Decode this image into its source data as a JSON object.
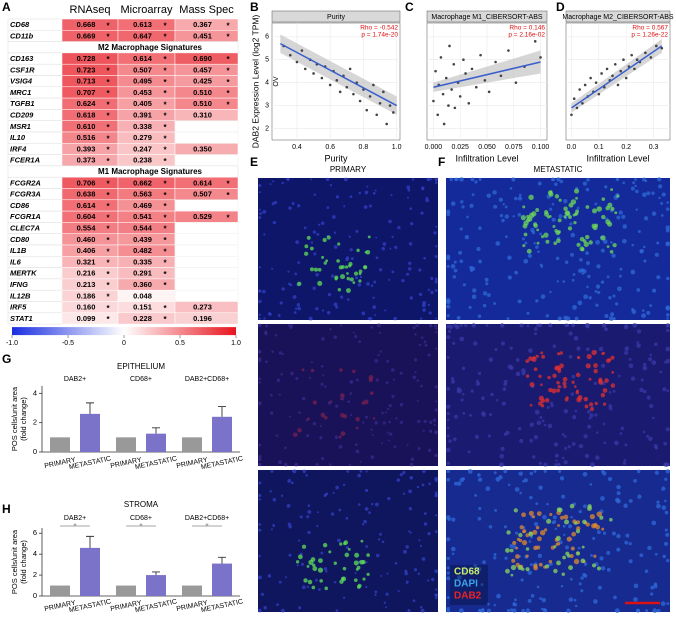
{
  "heatmap_table": {
    "label": "A",
    "columns": [
      "RNAseq",
      "Microarray",
      "Mass Spec"
    ],
    "sections": [
      {
        "rows": [
          {
            "gene": "CD68",
            "cells": [
              0.668,
              0.613,
              0.367
            ],
            "stars": [
              "*",
              "*",
              "*"
            ]
          },
          {
            "gene": "CD11b",
            "cells": [
              0.669,
              0.647,
              0.451
            ],
            "stars": [
              "*",
              "*",
              "*"
            ]
          }
        ]
      },
      {
        "title": "M2 Macrophage Signatures",
        "rows": [
          {
            "gene": "CD163",
            "cells": [
              0.728,
              0.614,
              {
                "value": 0.69,
                "label": "0.690"
              }
            ],
            "stars": [
              "*",
              "*",
              "*"
            ]
          },
          {
            "gene": "CSF1R",
            "cells": [
              0.723,
              0.507,
              0.457
            ],
            "stars": [
              "*",
              "*",
              "*"
            ]
          },
          {
            "gene": "VSIG4",
            "cells": [
              0.713,
              0.495,
              0.425
            ],
            "stars": [
              "*",
              "*",
              "*"
            ]
          },
          {
            "gene": "MRC1",
            "cells": [
              0.707,
              0.453,
              {
                "value": 0.51,
                "label": "0.510"
              }
            ],
            "stars": [
              "*",
              "*",
              "*"
            ]
          },
          {
            "gene": "TGFB1",
            "cells": [
              0.624,
              0.405,
              {
                "value": 0.51,
                "label": "0.510"
              }
            ],
            "stars": [
              "*",
              "*",
              "*"
            ]
          },
          {
            "gene": "CD209",
            "cells": [
              0.618,
              0.391,
              {
                "value": 0.31,
                "label": "0.310"
              }
            ],
            "stars": [
              "*",
              "*",
              null
            ]
          },
          {
            "gene": "MSR1",
            "cells": [
              {
                "value": 0.61,
                "label": "0.610"
              },
              0.338,
              null
            ],
            "stars": [
              "*",
              "*",
              null
            ]
          },
          {
            "gene": "IL10",
            "cells": [
              0.516,
              0.279,
              null
            ],
            "stars": [
              "*",
              "*",
              null
            ]
          },
          {
            "gene": "IRF4",
            "cells": [
              0.393,
              0.247,
              {
                "value": 0.35,
                "label": "0.350"
              }
            ],
            "stars": [
              "*",
              "*",
              null
            ]
          },
          {
            "gene": "FCER1A",
            "cells": [
              0.373,
              0.238,
              null
            ],
            "stars": [
              "*",
              "*",
              null
            ]
          }
        ]
      },
      {
        "title": "M1 Macrophage Signatures",
        "rows": [
          {
            "gene": "FCGR2A",
            "cells": [
              0.706,
              0.662,
              0.614
            ],
            "stars": [
              "*",
              "*",
              "*"
            ]
          },
          {
            "gene": "FCGR3A",
            "cells": [
              0.638,
              0.563,
              0.507
            ],
            "stars": [
              "*",
              "*",
              "*"
            ]
          },
          {
            "gene": "CD86",
            "cells": [
              0.614,
              0.469,
              null
            ],
            "stars": [
              "*",
              "*",
              null
            ]
          },
          {
            "gene": "FCGR1A",
            "cells": [
              0.604,
              0.541,
              0.529
            ],
            "stars": [
              "*",
              "*",
              "*"
            ]
          },
          {
            "gene": "CLEC7A",
            "cells": [
              0.554,
              0.544,
              null
            ],
            "stars": [
              "*",
              "*",
              null
            ]
          },
          {
            "gene": "CD80",
            "cells": [
              {
                "value": 0.46,
                "label": "0.460"
              },
              0.439,
              null
            ],
            "stars": [
              "*",
              "*",
              null
            ]
          },
          {
            "gene": "IL1B",
            "cells": [
              0.406,
              0.482,
              null
            ],
            "stars": [
              "*",
              "*",
              null
            ]
          },
          {
            "gene": "IL6",
            "cells": [
              0.321,
              0.335,
              null
            ],
            "stars": [
              "*",
              "*",
              null
            ]
          },
          {
            "gene": "MERTK",
            "cells": [
              0.216,
              0.291,
              null
            ],
            "stars": [
              "*",
              "*",
              null
            ]
          },
          {
            "gene": "IFNG",
            "cells": [
              0.213,
              {
                "value": 0.36,
                "label": "0.360"
              },
              null
            ],
            "stars": [
              "*",
              "*",
              null
            ]
          },
          {
            "gene": "IL12B",
            "cells": [
              0.186,
              0.048,
              null
            ],
            "stars": [
              "*",
              null,
              null
            ]
          },
          {
            "gene": "IRF5",
            "cells": [
              {
                "value": 0.16,
                "label": "0.160"
              },
              0.151,
              0.273
            ],
            "stars": [
              "*",
              "*",
              null
            ]
          },
          {
            "gene": "STAT1",
            "cells": [
              0.099,
              0.228,
              0.196
            ],
            "stars": [
              "*",
              "*",
              null
            ]
          }
        ]
      }
    ],
    "colorbar": {
      "lim": [
        -1,
        1
      ],
      "ticks": [
        {
          "value": -1,
          "label": "-1.0"
        },
        -0.5,
        0,
        0.5,
        {
          "value": 1,
          "label": "1.0"
        }
      ],
      "colors": [
        "#1a2ee0",
        "#ffffff",
        "#e8141e"
      ]
    }
  },
  "chart_data": [
    {
      "type": "scatter",
      "panel": "B",
      "title": "Purity",
      "xlabel": "Purity",
      "ylabel": "DAB2 Expression Level (log2 TPM)",
      "side_label": "OV",
      "annotation": [
        "Rho = -0.542",
        "p = 1.74e-20"
      ],
      "color": "#444444",
      "fit_color": "#3a5fcd",
      "x": [
        0.32,
        0.36,
        0.4,
        0.43,
        0.45,
        0.48,
        0.5,
        0.52,
        0.55,
        0.57,
        0.6,
        0.62,
        0.64,
        0.66,
        0.68,
        0.7,
        0.72,
        0.74,
        0.76,
        0.78,
        0.8,
        0.82,
        0.84,
        0.86,
        0.88,
        0.9,
        0.92,
        0.94,
        0.96,
        0.98
      ],
      "y": [
        5.6,
        5.2,
        4.9,
        5.4,
        4.6,
        5,
        4.4,
        4.8,
        4.2,
        4.7,
        3.9,
        4.5,
        4.1,
        3.6,
        4.3,
        3.8,
        4.6,
        3.5,
        4,
        3.2,
        3.7,
        2.8,
        3.4,
        3.9,
        2.6,
        3.1,
        3.6,
        2.2,
        3,
        2.7
      ],
      "fit": {
        "x": [
          0.3,
          1
        ],
        "y": [
          5.7,
          3
        ],
        "lower": [
          5.3,
          2.6
        ],
        "upper": [
          6.1,
          3.4
        ]
      },
      "xlim": [
        0.25,
        1.02
      ],
      "xticks": [
        0.4,
        0.6,
        0.8,
        {
          "value": 1,
          "label": "1.0"
        }
      ],
      "ylim": [
        1.5,
        6.6
      ],
      "yticks": [
        2,
        3,
        4,
        5,
        6
      ]
    },
    {
      "type": "scatter",
      "panel": "C",
      "title": "Macrophage M1_CIBERSORT-ABS",
      "xlabel": "Infiltration Level",
      "annotation": [
        "Rho = 0.146",
        "p = 2.16e-02"
      ],
      "color": "#444444",
      "fit_color": "#3a5fcd",
      "x": [
        0,
        0.002,
        0.004,
        0.005,
        0.007,
        0.009,
        0.01,
        0.012,
        0.014,
        0.015,
        0.017,
        0.019,
        0.02,
        0.023,
        0.025,
        0.028,
        0.03,
        0.033,
        0.036,
        0.04,
        0.044,
        0.048,
        0.052,
        0.058,
        0.063,
        0.07,
        0.077,
        0.085,
        0.095,
        0.1
      ],
      "y": [
        3.2,
        4.5,
        2.6,
        3.9,
        5.1,
        3.5,
        2.2,
        4.2,
        3,
        5.6,
        3.7,
        4.8,
        2.9,
        4,
        3.4,
        5,
        4.4,
        3.1,
        4.6,
        3.8,
        5.2,
        4.1,
        3.6,
        4.9,
        4.3,
        5.4,
        4,
        4.7,
        5.8,
        5.1
      ],
      "fit": {
        "x": [
          0,
          0.1
        ],
        "y": [
          3.8,
          4.9
        ],
        "lower": [
          3.6,
          4.4
        ],
        "upper": [
          4,
          5.4
        ]
      },
      "xlim": [
        -0.006,
        0.106
      ],
      "xticks": [
        {
          "value": 0,
          "label": "0.000"
        },
        0.025,
        {
          "value": 0.05,
          "label": "0.050"
        },
        0.075,
        {
          "value": 0.1,
          "label": "0.100"
        }
      ],
      "ylim": [
        1.5,
        6.6
      ]
    },
    {
      "type": "scatter",
      "panel": "D",
      "title": "Macrophage M2_CIBERSORT-ABS",
      "xlabel": "Infiltration Level",
      "annotation": [
        "Rho = 0.567",
        "p = 1.26e-22"
      ],
      "color": "#444444",
      "fit_color": "#3a5fcd",
      "x": [
        0,
        0.01,
        0.02,
        0.03,
        0.04,
        0.05,
        0.06,
        0.07,
        0.08,
        0.09,
        0.1,
        0.11,
        0.12,
        0.13,
        0.14,
        0.15,
        0.16,
        0.17,
        0.18,
        0.19,
        0.2,
        0.21,
        0.22,
        0.23,
        0.24,
        0.25,
        0.27,
        0.29,
        0.31,
        0.33
      ],
      "y": [
        2.6,
        3.3,
        2.9,
        3.7,
        3.1,
        3.9,
        3.4,
        4.2,
        3.6,
        4,
        3.5,
        4.4,
        3.8,
        4.6,
        4.1,
        4.3,
        4.8,
        3.9,
        4.5,
        5,
        4.2,
        4.7,
        5.2,
        4.6,
        5,
        4.9,
        5.3,
        5.1,
        5.6,
        5.5
      ],
      "fit": {
        "x": [
          0,
          0.33
        ],
        "y": [
          2.9,
          5.6
        ],
        "lower": [
          2.7,
          5.3
        ],
        "upper": [
          3.1,
          5.9
        ]
      },
      "xlim": [
        -0.02,
        0.36
      ],
      "xticks": [
        {
          "value": 0,
          "label": "0.0"
        },
        0.1,
        0.2,
        0.3
      ],
      "ylim": [
        1.5,
        6.6
      ]
    },
    {
      "type": "bar",
      "panel": "G",
      "title": "EPITHELIUM",
      "ylabel": [
        "POS cells/unit area",
        "(fold change)"
      ],
      "groups": [
        "DAB2+",
        "CD68+",
        "DAB2+CD68+"
      ],
      "series": [
        {
          "name": "PRIMARY",
          "color": "#999999",
          "values": [
            1,
            1,
            1
          ]
        },
        {
          "name": "METASTATIC",
          "color": "#7b72c9",
          "values": [
            2.6,
            1.25,
            2.4
          ],
          "errors": [
            0.75,
            0.4,
            0.7
          ]
        }
      ],
      "ylim": [
        0,
        4.5
      ],
      "yticks": [
        0,
        2,
        4
      ]
    },
    {
      "type": "bar",
      "panel": "H",
      "title": "STROMA",
      "ylabel": [
        "POS cells/unit area",
        "(fold change)"
      ],
      "groups": [
        "DAB2+",
        "CD68+",
        "DAB2+CD68+"
      ],
      "significance": [
        "*",
        "*",
        "*"
      ],
      "series": [
        {
          "name": "PRIMARY",
          "color": "#999999",
          "values": [
            1,
            1,
            1
          ]
        },
        {
          "name": "METASTATIC",
          "color": "#7b72c9",
          "values": [
            4.6,
            2,
            3.1
          ],
          "errors": [
            1.1,
            0.3,
            0.6
          ]
        }
      ],
      "ylim": [
        0,
        6.5
      ],
      "yticks": [
        0,
        2,
        4,
        6
      ]
    }
  ],
  "images": [
    {
      "label": "E",
      "title": "PRIMARY"
    },
    {
      "label": "F",
      "title": "METASTATIC",
      "legend": [
        {
          "name": "CD68",
          "color": "#c8ec6a"
        },
        {
          "name": "DAPI",
          "color": "#3aa6ee"
        },
        {
          "name": "DAB2",
          "color": "#ee2222"
        }
      ],
      "scale_bar_color": "#dd1111"
    }
  ]
}
